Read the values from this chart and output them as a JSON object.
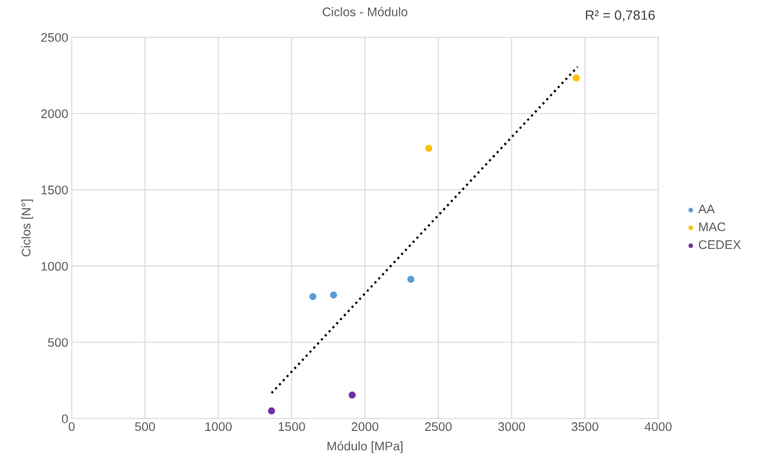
{
  "chart_data": {
    "type": "scatter",
    "title": "Ciclos - Módulo",
    "xlabel": "Módulo [MPa]",
    "ylabel": "Ciclos [N°]",
    "annotations": [
      "R² = 0,7816"
    ],
    "xlim": [
      0,
      4000
    ],
    "xticks": [
      0,
      500,
      1000,
      1500,
      2000,
      2500,
      3000,
      3500,
      4000
    ],
    "ylim": [
      0,
      2500
    ],
    "yticks": [
      0,
      500,
      1000,
      1500,
      2000,
      2500
    ],
    "grid": true,
    "legend": "right",
    "marker": "circle",
    "series": [
      {
        "name": "AA",
        "color": "#5b9bd5",
        "x": [
          1645,
          1786,
          2313
        ],
        "values": [
          800,
          810,
          913
        ]
      },
      {
        "name": "MAC",
        "color": "#ffc000",
        "x": [
          2435,
          3441
        ],
        "values": [
          1772,
          2233
        ]
      },
      {
        "name": "CEDEX",
        "color": "#7030a0",
        "x": [
          1363,
          1913
        ],
        "values": [
          50,
          154
        ]
      },
      {
        "type": "line",
        "color": "#000000",
        "line_style": "dotted",
        "marker": "none",
        "x": [
          1363,
          3450
        ],
        "values": [
          167,
          2306
        ]
      }
    ]
  }
}
